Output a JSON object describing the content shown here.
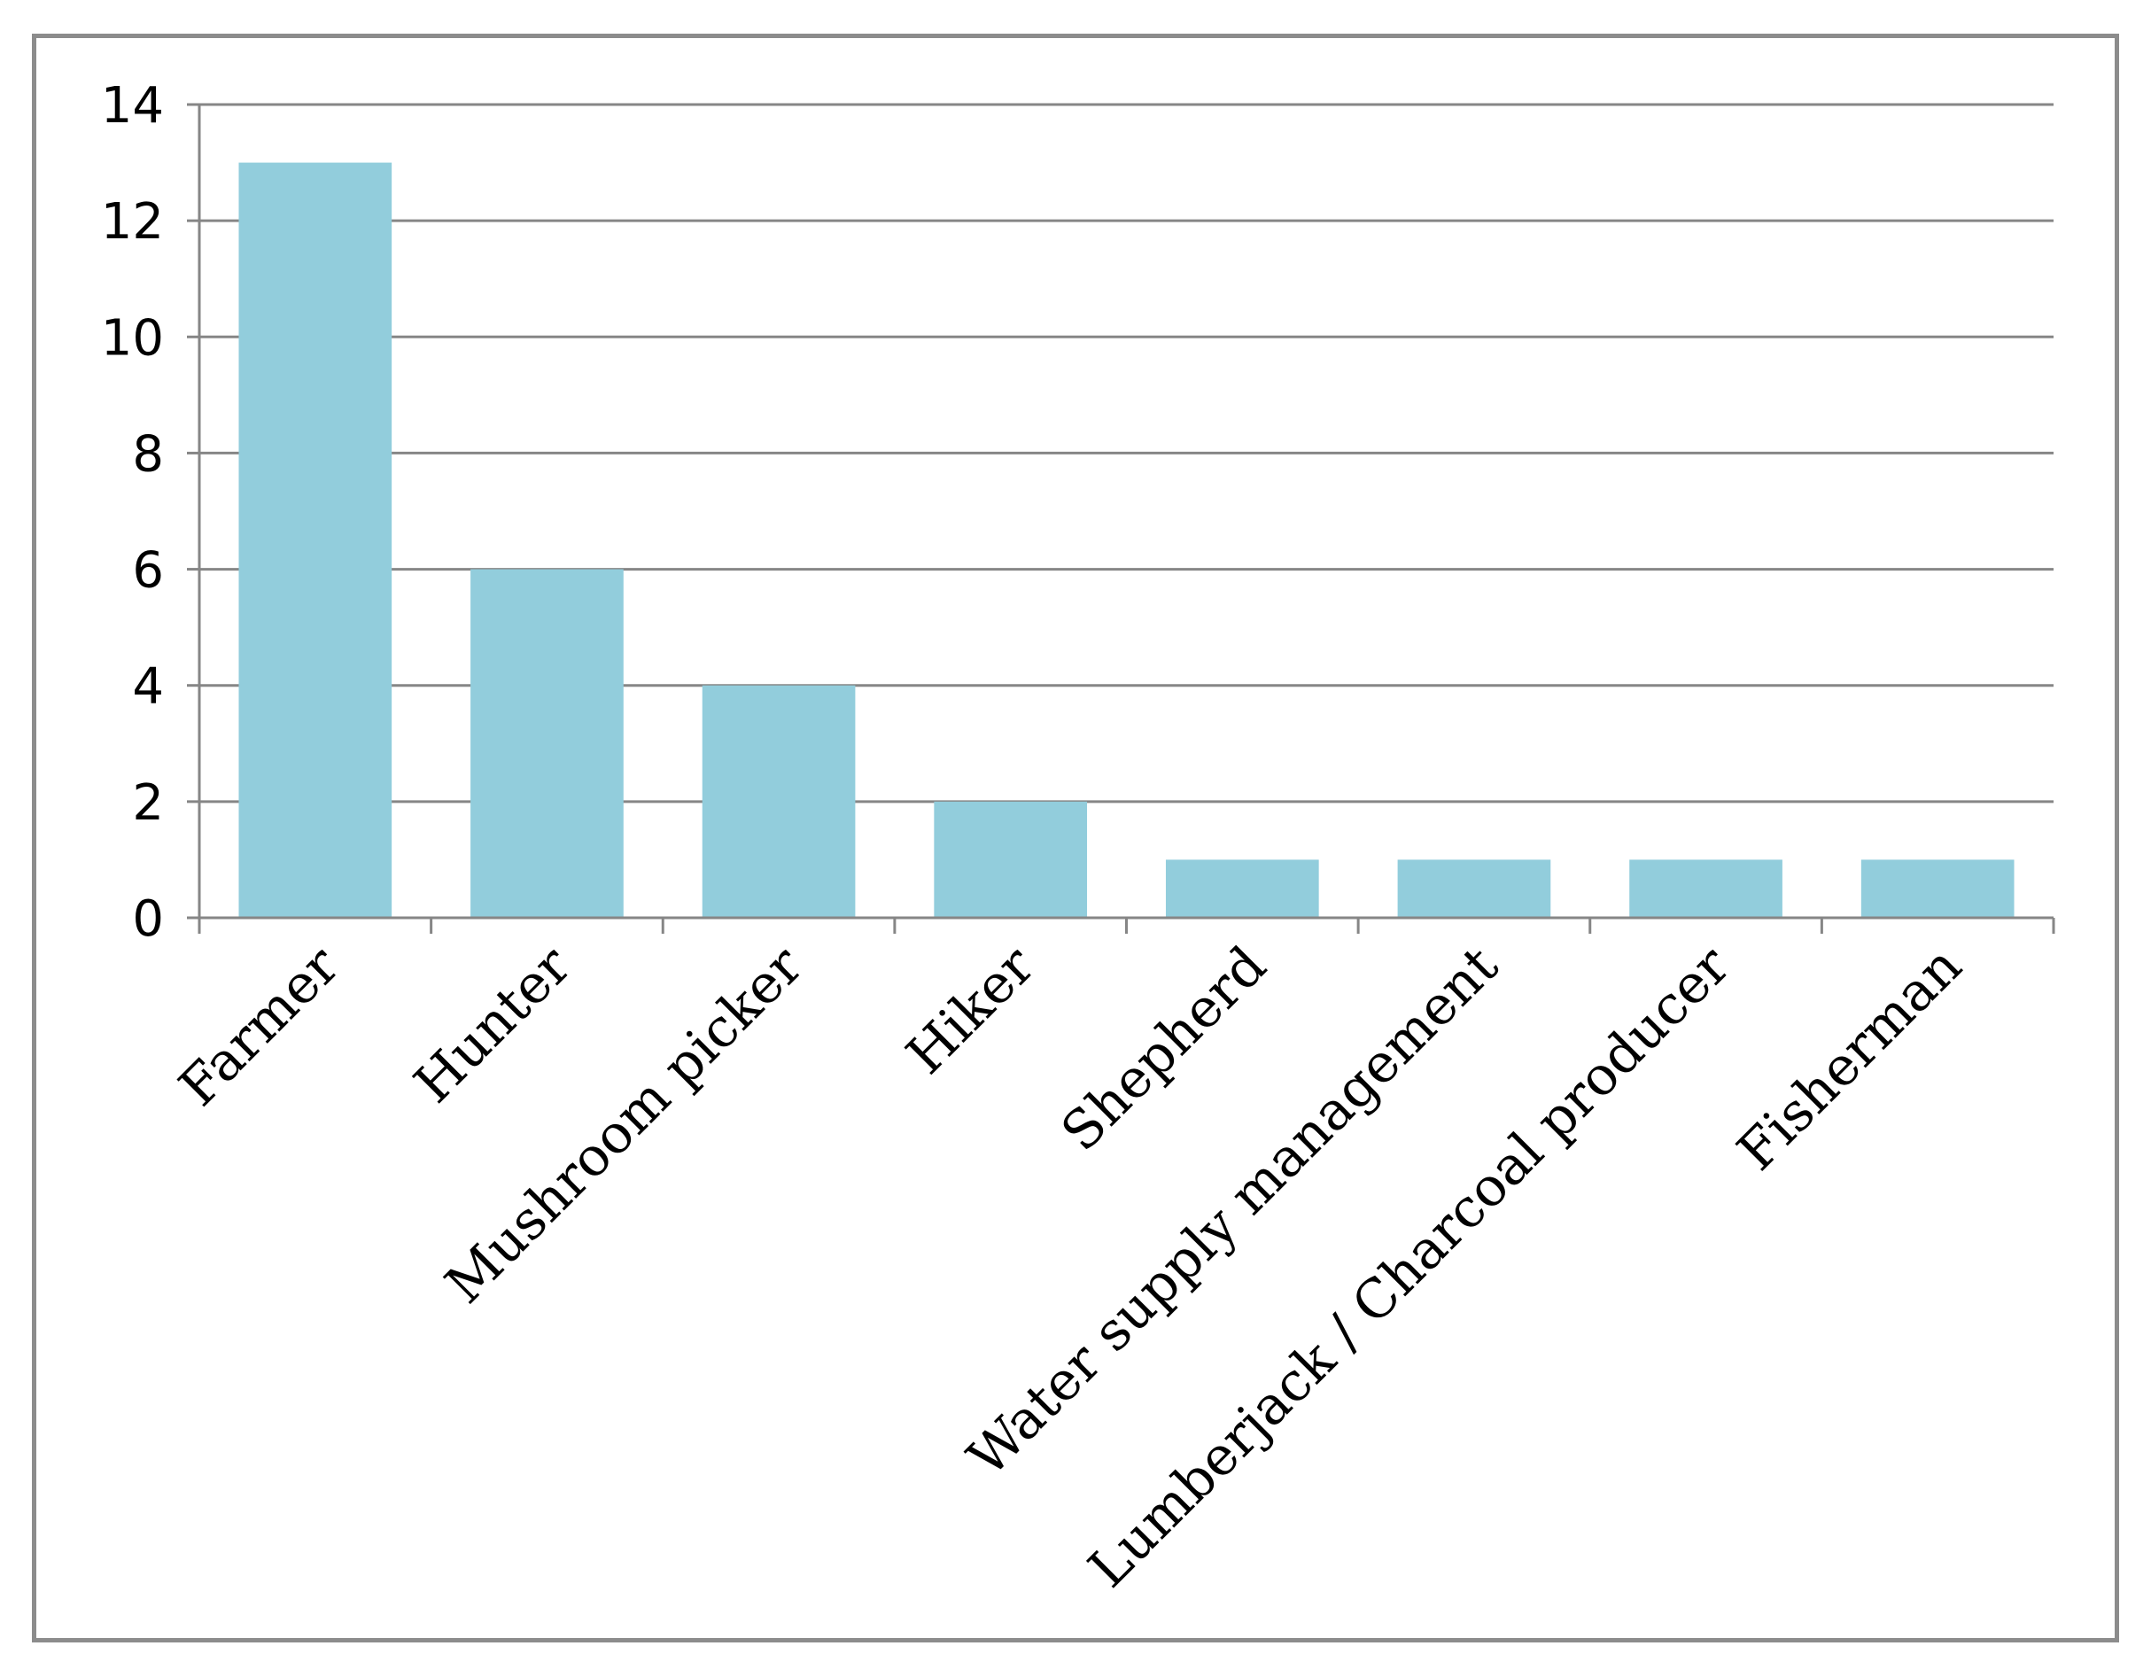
{
  "chart_data": {
    "type": "bar",
    "title": "",
    "xlabel": "",
    "ylabel": "",
    "categories": [
      "Farmer",
      "Hunter",
      "Mushroom picker",
      "Hiker",
      "Shepherd",
      "Water supply management",
      "Lumberjack / Charcoal producer",
      "Fisherman"
    ],
    "values": [
      13,
      6,
      4,
      2,
      1,
      1,
      1,
      1
    ],
    "ylim": [
      0,
      14
    ],
    "yticks": [
      "0",
      "2",
      "4",
      "6",
      "8",
      "10",
      "12",
      "14"
    ],
    "grid": true,
    "legend": "none",
    "colors": {
      "bar": "#92cddc",
      "grid": "#868686",
      "axis": "#868686",
      "frame": "#8c8c8c"
    }
  }
}
